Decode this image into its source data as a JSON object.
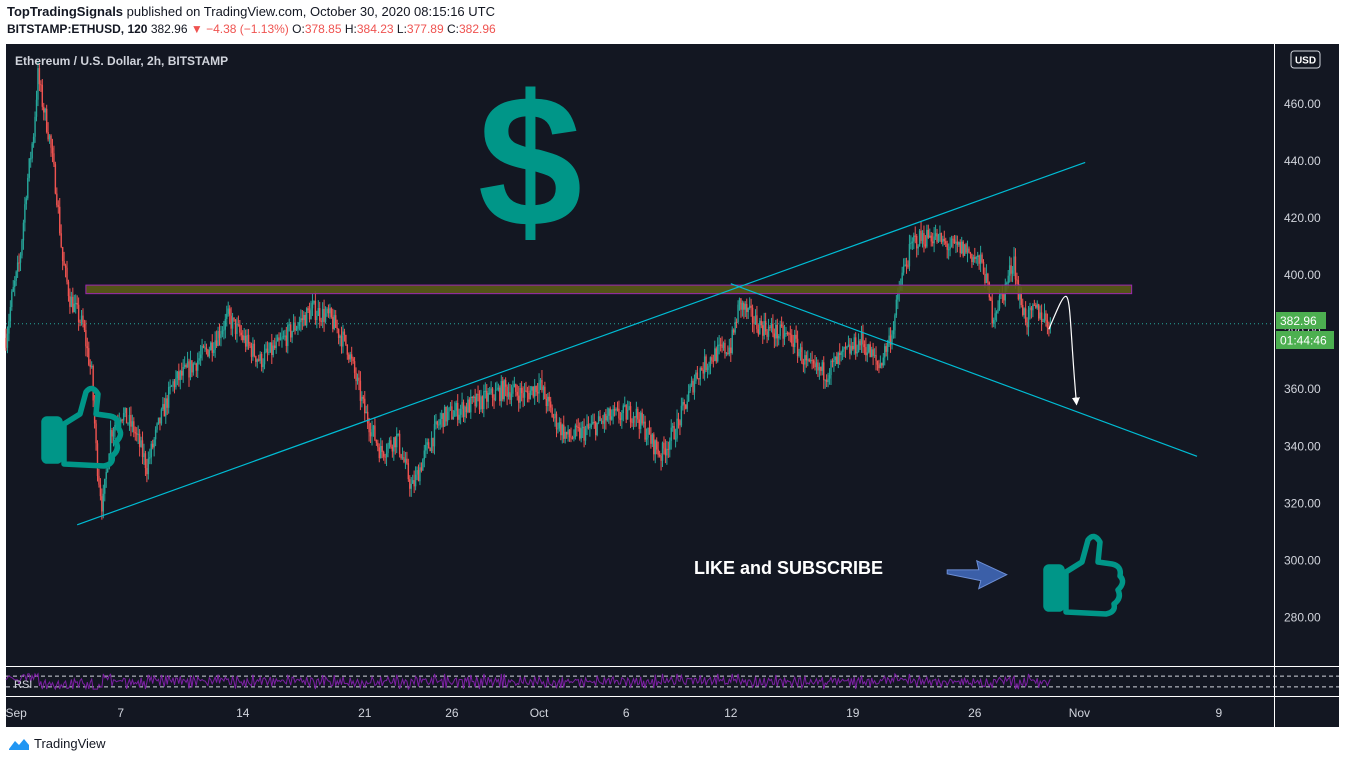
{
  "header": {
    "publisher": "TopTradingSignals",
    "published_text": "published on TradingView.com, October 30, 2020 08:15:16 UTC",
    "symbol": "BITSTAMP:ETHUSD, 120",
    "last": "382.96",
    "change": "▼ −4.38 (−1.13%)",
    "o_label": "O:",
    "o_value": "378.85",
    "h_label": "H:",
    "h_value": "384.23",
    "l_label": "L:",
    "l_value": "377.89",
    "c_label": "C:",
    "c_value": "382.96"
  },
  "legend": "Ethereum / U.S. Dollar, 2h, BITSTAMP",
  "currency_badge": "USD",
  "price_tag": "382.96",
  "countdown_tag": "01:44:46",
  "annotation_text": "LIKE and SUBSCRIBE",
  "dollar_glyph": "$",
  "rsi_label": "RSI",
  "footer_brand": "TradingView",
  "colors": {
    "background": "#131722",
    "up": "#26a69a",
    "down": "#ef5350",
    "trendline": "#00bcd4",
    "zone_fill": "#5b5a16",
    "zone_border": "#9c27b0",
    "icon_teal": "#009688",
    "rsi_line": "#7b1fa2",
    "price_tag": "#4caf50"
  },
  "chart_data": {
    "type": "candlestick",
    "y_axis": {
      "ticks": [
        460,
        440,
        420,
        400,
        380,
        360,
        340,
        320,
        300,
        280
      ],
      "tick_labels": [
        "460.00",
        "440.00",
        "420.00",
        "400.00",
        "380.00",
        "360.00",
        "340.00",
        "320.00",
        "300.00",
        "280.00"
      ],
      "range": [
        263,
        481
      ]
    },
    "x_axis": {
      "labels": [
        "Sep",
        "7",
        "14",
        "21",
        "26",
        "Oct",
        "6",
        "12",
        "19",
        "26",
        "Nov",
        "9"
      ],
      "dates": [
        "2020-09-01",
        "2020-09-07",
        "2020-09-14",
        "2020-09-21",
        "2020-09-26",
        "2020-10-01",
        "2020-10-06",
        "2020-10-12",
        "2020-10-19",
        "2020-10-26",
        "2020-11-01",
        "2020-11-09"
      ],
      "range": [
        "2020-08-31T10:00",
        "2020-11-12T04:00"
      ]
    },
    "last_price": 382.96,
    "price_path": [
      [
        "2020-08-31T10:00",
        378
      ],
      [
        "2020-08-31T18:00",
        392
      ],
      [
        "2020-09-01T05:00",
        405
      ],
      [
        "2020-09-01T14:00",
        430
      ],
      [
        "2020-09-02T00:00",
        450
      ],
      [
        "2020-09-02T06:00",
        470
      ],
      [
        "2020-09-02T11:00",
        462
      ],
      [
        "2020-09-02T22:00",
        448
      ],
      [
        "2020-09-03T08:00",
        428
      ],
      [
        "2020-09-03T16:00",
        405
      ],
      [
        "2020-09-04T02:00",
        392
      ],
      [
        "2020-09-04T20:00",
        382
      ],
      [
        "2020-09-05T08:00",
        365
      ],
      [
        "2020-09-05T15:00",
        335
      ],
      [
        "2020-09-05T23:00",
        318
      ],
      [
        "2020-09-06T10:00",
        345
      ],
      [
        "2020-09-07T00:00",
        352
      ],
      [
        "2020-09-07T18:00",
        346
      ],
      [
        "2020-09-08T12:00",
        333
      ],
      [
        "2020-09-09T05:00",
        348
      ],
      [
        "2020-09-10T00:00",
        362
      ],
      [
        "2020-09-11T02:00",
        368
      ],
      [
        "2020-09-12T03:00",
        375
      ],
      [
        "2020-09-13T04:00",
        385
      ],
      [
        "2020-09-14T00:00",
        378
      ],
      [
        "2020-09-15T00:00",
        370
      ],
      [
        "2020-09-16T00:00",
        375
      ],
      [
        "2020-09-17T00:00",
        382
      ],
      [
        "2020-09-18T00:00",
        388
      ],
      [
        "2020-09-19T00:00",
        385
      ],
      [
        "2020-09-20T00:00",
        375
      ],
      [
        "2020-09-21T00:00",
        352
      ],
      [
        "2020-09-21T22:00",
        338
      ],
      [
        "2020-09-22T20:00",
        343
      ],
      [
        "2020-09-23T17:00",
        325
      ],
      [
        "2020-09-24T12:00",
        338
      ],
      [
        "2020-09-25T10:00",
        350
      ],
      [
        "2020-09-26T12:00",
        353
      ],
      [
        "2020-09-27T18:00",
        356
      ],
      [
        "2020-09-29T00:00",
        360
      ],
      [
        "2020-09-30T06:00",
        358
      ],
      [
        "2020-10-01T00:00",
        362
      ],
      [
        "2020-10-01T20:00",
        350
      ],
      [
        "2020-10-02T16:00",
        343
      ],
      [
        "2020-10-03T14:00",
        345
      ],
      [
        "2020-10-05T00:00",
        350
      ],
      [
        "2020-10-06T12:00",
        352
      ],
      [
        "2020-10-07T10:00",
        342
      ],
      [
        "2020-10-08T00:00",
        337
      ],
      [
        "2020-10-09T00:00",
        348
      ],
      [
        "2020-10-10T00:00",
        365
      ],
      [
        "2020-10-11T00:00",
        372
      ],
      [
        "2020-10-12T00:00",
        375
      ],
      [
        "2020-10-12T12:00",
        390
      ],
      [
        "2020-10-13T12:00",
        383
      ],
      [
        "2020-10-14T12:00",
        380
      ],
      [
        "2020-10-15T12:00",
        378
      ],
      [
        "2020-10-16T12:00",
        367
      ],
      [
        "2020-10-17T12:00",
        366
      ],
      [
        "2020-10-18T12:00",
        372
      ],
      [
        "2020-10-19T12:00",
        377
      ],
      [
        "2020-10-20T12:00",
        368
      ],
      [
        "2020-10-21T06:00",
        380
      ],
      [
        "2020-10-21T20:00",
        400
      ],
      [
        "2020-10-22T12:00",
        412
      ],
      [
        "2020-10-23T12:00",
        414
      ],
      [
        "2020-10-24T12:00",
        410
      ],
      [
        "2020-10-25T12:00",
        409
      ],
      [
        "2020-10-26T12:00",
        403
      ],
      [
        "2020-10-27T00:00",
        386
      ],
      [
        "2020-10-27T16:00",
        394
      ],
      [
        "2020-10-28T06:00",
        406
      ],
      [
        "2020-10-28T12:00",
        393
      ],
      [
        "2020-10-29T00:00",
        384
      ],
      [
        "2020-10-29T12:00",
        388
      ],
      [
        "2020-10-30T08:00",
        382.96
      ]
    ],
    "drawings": {
      "resistance_zone": {
        "price_low": 393.5,
        "price_high": 396.5,
        "from": "2020-09-05T00:00",
        "to": "2020-11-04T00:00"
      },
      "ascending_trendline": {
        "from": [
          "2020-09-04T12:00",
          312.5
        ],
        "to": [
          "2020-11-01T08:00",
          439.5
        ]
      },
      "descending_trendline": {
        "from": [
          "2020-10-12T00:00",
          397
        ],
        "to": [
          "2020-11-07T18:00",
          336.5
        ]
      },
      "projection_arrow": {
        "from": [
          "2020-10-30T06:00",
          381
        ],
        "to": [
          "2020-10-31T20:00",
          355
        ]
      },
      "annotation_arrow": {
        "from": [
          "2020-10-24T10:00",
          296
        ],
        "to": [
          "2020-10-27T20:00",
          295
        ]
      }
    },
    "rsi": {
      "label": "RSI",
      "band_upper": 70,
      "band_lower": 30
    }
  }
}
